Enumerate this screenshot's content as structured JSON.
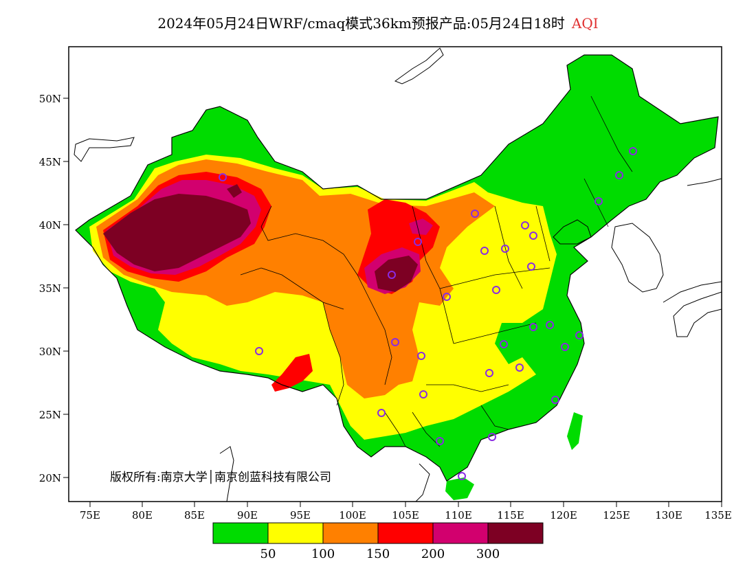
{
  "header": {
    "title": "2024年05月24日WRF/cmaq模式36km预报产品:05月24日18时",
    "variable": "AQI",
    "variable_color": "#e03030"
  },
  "axes": {
    "lat_labels": [
      "50N",
      "45N",
      "40N",
      "35N",
      "30N",
      "25N",
      "20N"
    ],
    "lon_labels": [
      "75E",
      "80E",
      "85E",
      "90E",
      "95E",
      "100E",
      "105E",
      "110E",
      "115E",
      "120E",
      "125E",
      "130E",
      "135E"
    ]
  },
  "legend": {
    "colors": [
      "#00dc00",
      "#ffff00",
      "#ff8000",
      "#ff0000",
      "#d2006e",
      "#7d0023"
    ],
    "thresholds": [
      "50",
      "100",
      "150",
      "200",
      "300"
    ]
  },
  "copyright": "版权所有:南京大学│南京创蓝科技有限公司",
  "palette": {
    "good": "#00dc00",
    "moderate": "#ffff00",
    "sensitive": "#ff8000",
    "unhealthy": "#ff0000",
    "very_unhealthy": "#d2006e",
    "hazardous": "#7d0023",
    "station_marker": "#8a2be2"
  }
}
